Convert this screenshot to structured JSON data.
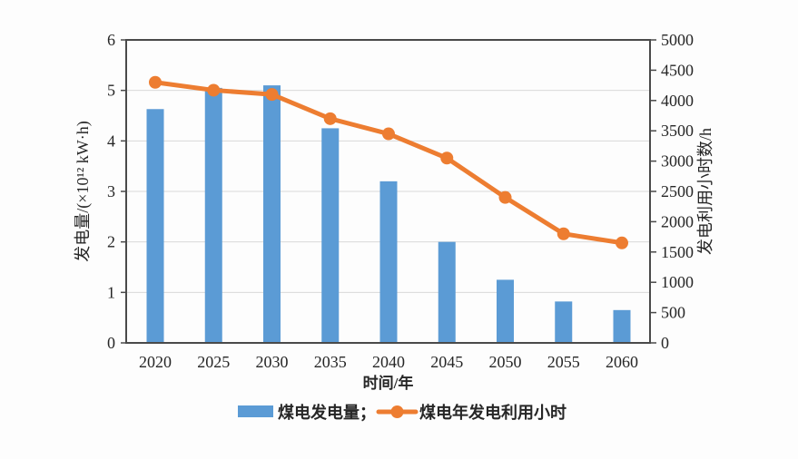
{
  "chart_data": {
    "type": "bar",
    "title": "",
    "categories": [
      "2020",
      "2025",
      "2030",
      "2035",
      "2040",
      "2045",
      "2050",
      "2055",
      "2060"
    ],
    "series": [
      {
        "name": "煤电发电量",
        "type": "bar",
        "axis": "left",
        "values": [
          4.63,
          5.05,
          5.1,
          4.25,
          3.2,
          2.0,
          1.25,
          0.82,
          0.65
        ]
      },
      {
        "name": "煤电年发电利用小时",
        "type": "line",
        "axis": "right",
        "values": [
          4300,
          4170,
          4100,
          3700,
          3450,
          3050,
          2400,
          1800,
          1650
        ]
      }
    ],
    "xlabel": "时间/年",
    "ylabel_left": "发电量/(×10¹² kW·h)",
    "ylabel_right": "发电利用小时数/h",
    "ylim_left": [
      0,
      6
    ],
    "ylim_right": [
      0,
      5000
    ],
    "yticks_left": [
      "0",
      "1",
      "2",
      "3",
      "4",
      "5",
      "6"
    ],
    "yticks_right": [
      "0",
      "500",
      "1000",
      "1500",
      "2000",
      "2500",
      "3000",
      "3500",
      "4000",
      "4500",
      "5000"
    ],
    "grid": "horizontal gridlines at left-axis integers",
    "legend_position": "bottom",
    "legend": [
      {
        "label": "煤电发电量；",
        "marker": "bar-swatch"
      },
      {
        "label": "煤电年发电利用小时",
        "marker": "line-dot"
      }
    ]
  },
  "colors": {
    "bar": "#5B9BD5",
    "line": "#ED7D31",
    "axis": "#4a4a4a",
    "grid": "#d9d9d9",
    "text": "#262626",
    "background": "#fdfdfd"
  }
}
